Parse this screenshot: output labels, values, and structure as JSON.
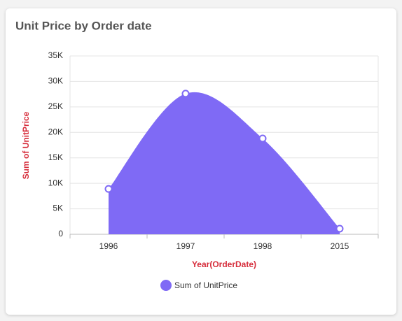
{
  "chart_data": {
    "type": "spline_area",
    "title": "Unit Price by Order date",
    "x_label": "Year(OrderDate)",
    "y_label": "Sum of UnitPrice",
    "categories": [
      "1996",
      "1997",
      "1998",
      "2015"
    ],
    "series": [
      {
        "name": "Sum of UnitPrice",
        "color": "#7f6af5",
        "values": [
          8900,
          27600,
          18800,
          1100
        ]
      }
    ],
    "ylim": [
      0,
      35000
    ],
    "yticks": [
      0,
      {
        "value": 5000,
        "label": "5K"
      },
      {
        "value": 10000,
        "label": "10K"
      },
      {
        "value": 15000,
        "label": "15K"
      },
      {
        "value": 20000,
        "label": "20K"
      },
      {
        "value": 25000,
        "label": "25K"
      },
      {
        "value": 30000,
        "label": "30K"
      },
      {
        "value": 35000,
        "label": "35K"
      }
    ],
    "grid": true,
    "legend": "bottom"
  }
}
